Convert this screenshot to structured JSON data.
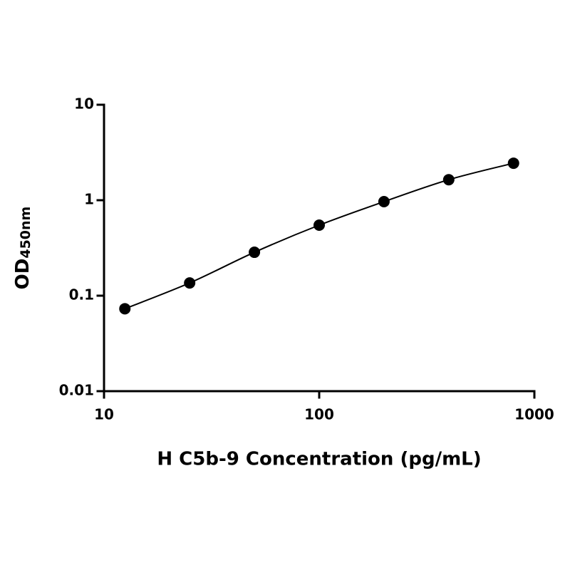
{
  "chart_data": {
    "type": "scatter",
    "xlabel": "H C5b-9 Concentration (pg/mL)",
    "ylabel": {
      "main": "OD",
      "sub": "450nm"
    },
    "x": [
      12.5,
      25,
      50,
      100,
      200,
      400,
      800
    ],
    "values": [
      0.073,
      0.136,
      0.285,
      0.548,
      0.966,
      1.64,
      2.44
    ],
    "color": "#000000",
    "fit_line": true,
    "xscale": "log",
    "yscale": "log",
    "xlim": [
      10,
      1000
    ],
    "xticks": [
      10,
      100,
      1000
    ],
    "ylim": [
      0.01,
      10
    ],
    "yticks": [
      0.01,
      0.1,
      1,
      10
    ]
  }
}
